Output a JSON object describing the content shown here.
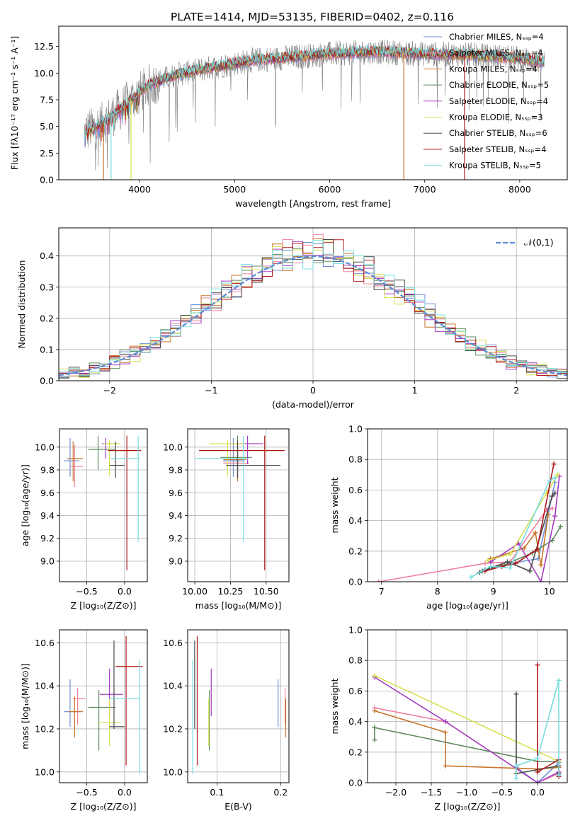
{
  "figure": {
    "title": "PLATE=1414, MJD=53135, FIBERID=0402, z=0.116"
  },
  "colors": {
    "series": [
      "#6f8fd8",
      "#f0809e",
      "#c8742a",
      "#5e8a5e",
      "#a63cc0",
      "#d8e050",
      "#4a4a4a",
      "#b01818",
      "#78dde0"
    ],
    "spectrum_data": "#7f7f7f",
    "gaussian": "#5b8ad6",
    "grid": "#b0b0b0"
  },
  "chart_data": [
    {
      "id": "spectrum",
      "type": "line",
      "title": "PLATE=1414, MJD=53135, FIBERID=0402, z=0.116",
      "xlabel": "wavelength [Angstrom, rest frame]",
      "ylabel": "Flux [fλ10⁻¹⁷ erg cm⁻² s⁻¹ A⁻¹]",
      "xlim": [
        3150,
        8500
      ],
      "ylim": [
        0,
        14.4
      ],
      "xticks": [
        4000,
        5000,
        6000,
        7000,
        8000
      ],
      "yticks": [
        0.0,
        2.5,
        5.0,
        7.5,
        10.0,
        12.5
      ],
      "grid": false,
      "legend_position": "upper right",
      "x_range_data": [
        3420,
        8260
      ],
      "continuum": [
        [
          3420,
          4.5
        ],
        [
          3600,
          5.2
        ],
        [
          3900,
          7.4
        ],
        [
          4100,
          8.9
        ],
        [
          4400,
          9.9
        ],
        [
          4800,
          10.6
        ],
        [
          5200,
          11.2
        ],
        [
          5600,
          11.5
        ],
        [
          6000,
          11.8
        ],
        [
          6500,
          12.0
        ],
        [
          7000,
          11.8
        ],
        [
          7500,
          11.7
        ],
        [
          8000,
          11.4
        ],
        [
          8260,
          11.0
        ]
      ],
      "series": [
        {
          "name": "Chabrier MILES, N_SSP=4"
        },
        {
          "name": "Salpeter MILES, N_SSP=4"
        },
        {
          "name": "Kroupa MILES, N_SSP=4"
        },
        {
          "name": "Chabrier ELODIE, N_SSP=5"
        },
        {
          "name": "Salpeter ELODIE, N_SSP=4"
        },
        {
          "name": "Kroupa ELODIE, N_SSP=3"
        },
        {
          "name": "Chabrier STELIB, N_SSP=6"
        },
        {
          "name": "Salpeter STELIB, N_SSP=4"
        },
        {
          "name": "Kroupa STELIB, N_SSP=5"
        }
      ],
      "vertical_drops": [
        {
          "x": 3620,
          "series": 2
        },
        {
          "x": 3700,
          "series": 8
        },
        {
          "x": 3910,
          "series": 5
        },
        {
          "x": 6780,
          "series": 2
        },
        {
          "x": 7420,
          "series": 7
        }
      ]
    },
    {
      "id": "residuals",
      "type": "histogram",
      "xlabel": "(data-model)/error",
      "ylabel": "Normed distribution",
      "xlim": [
        -2.5,
        2.5
      ],
      "ylim": [
        0,
        0.49
      ],
      "xticks": [
        -2,
        -1,
        0,
        1,
        2
      ],
      "yticks": [
        0.0,
        0.1,
        0.2,
        0.3,
        0.4
      ],
      "grid": true,
      "bin_width": 0.1,
      "legend": [
        {
          "name": "𝒩(0,1)",
          "style": "dashed"
        }
      ],
      "legend_position": "upper right"
    },
    {
      "id": "age_vs_Z",
      "type": "errorbar",
      "xlabel": "Z [log₁₀(Z/Z⊙)]",
      "ylabel": "age  [log₁₀(age/yr)]",
      "xlim": [
        -0.86,
        0.3
      ],
      "ylim": [
        8.82,
        10.16
      ],
      "xticks": [
        -0.5,
        0.0
      ],
      "xtick_labels": [
        "−0.5",
        "0.0"
      ],
      "yticks": [
        9.0,
        9.2,
        9.4,
        9.6,
        9.8,
        10.0
      ],
      "grid": true,
      "points": [
        {
          "x": -0.72,
          "xlo": -0.8,
          "xhi": -0.6,
          "y": 9.88,
          "ylo": 9.74,
          "yhi": 10.08,
          "series": 0
        },
        {
          "x": -0.66,
          "xlo": -0.72,
          "xhi": -0.55,
          "y": 9.83,
          "ylo": 9.65,
          "yhi": 10.02,
          "series": 1
        },
        {
          "x": -0.68,
          "xlo": -0.76,
          "xhi": -0.55,
          "y": 9.9,
          "ylo": 9.7,
          "yhi": 10.05,
          "series": 2
        },
        {
          "x": -0.35,
          "xlo": -0.48,
          "xhi": -0.12,
          "y": 9.98,
          "ylo": 9.8,
          "yhi": 10.1,
          "series": 3
        },
        {
          "x": -0.25,
          "xlo": -0.3,
          "xhi": -0.1,
          "y": 10.03,
          "ylo": 9.9,
          "yhi": 10.08,
          "series": 4
        },
        {
          "x": -0.2,
          "xlo": -0.28,
          "xhi": -0.05,
          "y": 10.03,
          "ylo": 9.75,
          "yhi": 10.06,
          "series": 5
        },
        {
          "x": -0.12,
          "xlo": -0.2,
          "xhi": 0.0,
          "y": 9.84,
          "ylo": 9.73,
          "yhi": 10.05,
          "series": 6
        },
        {
          "x": 0.03,
          "xlo": -0.22,
          "xhi": 0.22,
          "y": 9.97,
          "ylo": 8.92,
          "yhi": 10.1,
          "series": 7
        },
        {
          "x": 0.18,
          "xlo": -0.18,
          "xhi": 0.2,
          "y": 9.9,
          "ylo": 9.17,
          "yhi": 10.1,
          "series": 8
        }
      ]
    },
    {
      "id": "age_vs_mass",
      "type": "errorbar",
      "xlabel": "mass [log₁₀(M/M⊙)]",
      "ylabel": "",
      "xlim": [
        9.95,
        10.66
      ],
      "ylim": [
        8.82,
        10.16
      ],
      "xticks": [
        10.0,
        10.25,
        10.5
      ],
      "xtick_labels": [
        "10.00",
        "10.25",
        "10.50"
      ],
      "yticks": [
        9.0,
        9.2,
        9.4,
        9.6,
        9.8,
        10.0
      ],
      "grid": true,
      "points": [
        {
          "x": 10.27,
          "xlo": 10.2,
          "xhi": 10.35,
          "y": 9.88,
          "ylo": 9.74,
          "yhi": 10.08,
          "series": 0
        },
        {
          "x": 10.3,
          "xlo": 10.2,
          "xhi": 10.38,
          "y": 9.86,
          "ylo": 9.7,
          "yhi": 10.03,
          "series": 1
        },
        {
          "x": 10.3,
          "xlo": 10.2,
          "xhi": 10.36,
          "y": 9.89,
          "ylo": 9.7,
          "yhi": 10.05,
          "series": 2
        },
        {
          "x": 10.3,
          "xlo": 10.18,
          "xhi": 10.4,
          "y": 9.91,
          "ylo": 9.75,
          "yhi": 10.1,
          "series": 3
        },
        {
          "x": 10.37,
          "xlo": 10.25,
          "xhi": 10.48,
          "y": 10.03,
          "ylo": 9.85,
          "yhi": 10.1,
          "series": 4
        },
        {
          "x": 10.23,
          "xlo": 10.1,
          "xhi": 10.35,
          "y": 10.03,
          "ylo": 9.75,
          "yhi": 10.06,
          "series": 5
        },
        {
          "x": 10.3,
          "xlo": 10.22,
          "xhi": 10.6,
          "y": 9.84,
          "ylo": 9.73,
          "yhi": 10.06,
          "series": 6
        },
        {
          "x": 10.49,
          "xlo": 10.03,
          "xhi": 10.63,
          "y": 9.97,
          "ylo": 8.92,
          "yhi": 10.1,
          "series": 7
        },
        {
          "x": 10.34,
          "xlo": 10.0,
          "xhi": 10.38,
          "y": 9.9,
          "ylo": 9.17,
          "yhi": 10.1,
          "series": 8
        }
      ]
    },
    {
      "id": "weight_vs_age",
      "type": "line",
      "xlabel": "age  [log₁₀(age/yr)]",
      "ylabel": "mass weight",
      "xlim": [
        6.75,
        10.32
      ],
      "ylim": [
        0,
        1.0
      ],
      "xticks": [
        7,
        8,
        9,
        10
      ],
      "yticks": [
        0.0,
        0.2,
        0.4,
        0.6,
        0.8,
        1.0
      ],
      "grid": true,
      "series": [
        {
          "series": 0,
          "points": [
            [
              8.85,
              0.08
            ],
            [
              9.3,
              0.12
            ],
            [
              9.8,
              0.15
            ],
            [
              10.0,
              0.48
            ],
            [
              10.1,
              0.65
            ]
          ]
        },
        {
          "series": 1,
          "points": [
            [
              6.95,
              0.0
            ],
            [
              8.85,
              0.12
            ],
            [
              9.3,
              0.13
            ],
            [
              9.95,
              0.47
            ],
            [
              10.05,
              0.48
            ]
          ]
        },
        {
          "series": 2,
          "points": [
            [
              8.95,
              0.15
            ],
            [
              9.55,
              0.22
            ],
            [
              9.75,
              0.32
            ],
            [
              9.85,
              0.11
            ],
            [
              9.98,
              0.44
            ]
          ]
        },
        {
          "series": 3,
          "points": [
            [
              8.8,
              0.07
            ],
            [
              9.2,
              0.11
            ],
            [
              9.7,
              0.19
            ],
            [
              10.05,
              0.27
            ],
            [
              10.2,
              0.36
            ]
          ]
        },
        {
          "series": 4,
          "points": [
            [
              8.95,
              0.13
            ],
            [
              9.45,
              0.25
            ],
            [
              9.85,
              0.0
            ],
            [
              10.1,
              0.43
            ],
            [
              10.18,
              0.69
            ]
          ]
        },
        {
          "series": 5,
          "points": [
            [
              8.9,
              0.14
            ],
            [
              9.3,
              0.18
            ],
            [
              9.95,
              0.58
            ],
            [
              10.15,
              0.7
            ]
          ]
        },
        {
          "series": 6,
          "points": [
            [
              8.75,
              0.06
            ],
            [
              8.95,
              0.09
            ],
            [
              9.25,
              0.13
            ],
            [
              9.65,
              0.07
            ],
            [
              10.05,
              0.56
            ],
            [
              10.1,
              0.58
            ]
          ]
        },
        {
          "series": 7,
          "points": [
            [
              8.85,
              0.07
            ],
            [
              9.15,
              0.1
            ],
            [
              9.4,
              0.12
            ],
            [
              9.78,
              0.21
            ],
            [
              10.08,
              0.77
            ]
          ]
        },
        {
          "series": 8,
          "points": [
            [
              8.6,
              0.03
            ],
            [
              8.95,
              0.1
            ],
            [
              9.3,
              0.09
            ],
            [
              10.0,
              0.66
            ],
            [
              10.1,
              0.68
            ]
          ]
        }
      ]
    },
    {
      "id": "mass_vs_Z",
      "type": "errorbar",
      "xlabel": "Z [log₁₀(Z/Z⊙)]",
      "ylabel": "mass [log₁₀(M/M⊙)]",
      "xlim": [
        -0.86,
        0.3
      ],
      "ylim": [
        9.95,
        10.66
      ],
      "xticks": [
        -0.5,
        0.0
      ],
      "xtick_labels": [
        "−0.5",
        "0.0"
      ],
      "yticks": [
        10.0,
        10.2,
        10.4,
        10.6
      ],
      "grid": true,
      "points": [
        {
          "x": -0.72,
          "xlo": -0.8,
          "xhi": -0.63,
          "y": 10.28,
          "ylo": 10.21,
          "yhi": 10.43,
          "series": 0
        },
        {
          "x": -0.62,
          "xlo": -0.68,
          "xhi": -0.52,
          "y": 10.34,
          "ylo": 10.22,
          "yhi": 10.39,
          "series": 1
        },
        {
          "x": -0.66,
          "xlo": -0.74,
          "xhi": -0.55,
          "y": 10.28,
          "ylo": 10.16,
          "yhi": 10.35,
          "series": 2
        },
        {
          "x": -0.34,
          "xlo": -0.48,
          "xhi": -0.12,
          "y": 10.3,
          "ylo": 10.1,
          "yhi": 10.38,
          "series": 3
        },
        {
          "x": -0.2,
          "xlo": -0.33,
          "xhi": -0.02,
          "y": 10.36,
          "ylo": 10.26,
          "yhi": 10.48,
          "series": 4
        },
        {
          "x": -0.2,
          "xlo": -0.35,
          "xhi": -0.05,
          "y": 10.23,
          "ylo": 10.12,
          "yhi": 10.34,
          "series": 5
        },
        {
          "x": -0.14,
          "xlo": -0.2,
          "xhi": 0.0,
          "y": 10.21,
          "ylo": 10.2,
          "yhi": 10.61,
          "series": 6
        },
        {
          "x": 0.02,
          "xlo": -0.12,
          "xhi": 0.24,
          "y": 10.49,
          "ylo": 10.03,
          "yhi": 10.63,
          "series": 7
        },
        {
          "x": 0.2,
          "xlo": -0.2,
          "xhi": 0.2,
          "y": 10.34,
          "ylo": 9.99,
          "yhi": 10.52,
          "series": 8
        }
      ]
    },
    {
      "id": "mass_vs_ebv",
      "type": "errorbar",
      "xlabel": "E(B-V)",
      "ylabel": "",
      "xlim": [
        0.054,
        0.213
      ],
      "ylim": [
        9.95,
        10.66
      ],
      "xticks": [
        0.1,
        0.2
      ],
      "xtick_labels": [
        "0.1",
        "0.2"
      ],
      "yticks": [
        10.0,
        10.2,
        10.4,
        10.6
      ],
      "grid": true,
      "points": [
        {
          "x": 0.196,
          "ylo": 10.21,
          "yhi": 10.43,
          "series": 0
        },
        {
          "x": 0.207,
          "ylo": 10.22,
          "yhi": 10.39,
          "series": 1
        },
        {
          "x": 0.208,
          "ylo": 10.16,
          "yhi": 10.34,
          "series": 2
        },
        {
          "x": 0.088,
          "ylo": 10.1,
          "yhi": 10.38,
          "series": 3
        },
        {
          "x": 0.091,
          "ylo": 10.26,
          "yhi": 10.48,
          "series": 4
        },
        {
          "x": 0.087,
          "ylo": 10.12,
          "yhi": 10.34,
          "series": 5
        },
        {
          "x": 0.065,
          "ylo": 10.2,
          "yhi": 10.61,
          "series": 6
        },
        {
          "x": 0.069,
          "ylo": 10.03,
          "yhi": 10.63,
          "series": 7
        },
        {
          "x": 0.062,
          "ylo": 9.99,
          "yhi": 10.52,
          "series": 8
        }
      ]
    },
    {
      "id": "weight_vs_Z",
      "type": "line",
      "xlabel": "Z [log₁₀(Z/Z⊙)]",
      "ylabel": "mass weight",
      "xlim": [
        -2.4,
        0.42
      ],
      "ylim": [
        0,
        1.0
      ],
      "xticks": [
        -2.0,
        -1.5,
        -1.0,
        -0.5,
        0.0
      ],
      "xtick_labels": [
        "−2.0",
        "−1.5",
        "−1.0",
        "−0.5",
        "0.0"
      ],
      "yticks": [
        0.0,
        0.2,
        0.4,
        0.6,
        0.8,
        1.0
      ],
      "grid": true,
      "series": [
        {
          "series": 0,
          "points": [
            [
              -0.3,
              0.1
            ],
            [
              0.0,
              0.0
            ],
            [
              0.3,
              0.13
            ],
            [
              0.3,
              0.05
            ]
          ]
        },
        {
          "series": 1,
          "points": [
            [
              -2.3,
              0.49
            ],
            [
              -1.3,
              0.4
            ],
            [
              0.0,
              0.0
            ],
            [
              0.3,
              0.06
            ]
          ]
        },
        {
          "series": 2,
          "points": [
            [
              -2.3,
              0.47
            ],
            [
              -1.3,
              0.33
            ],
            [
              -1.3,
              0.11
            ],
            [
              0.0,
              0.09
            ],
            [
              0.3,
              0.1
            ]
          ]
        },
        {
          "series": 3,
          "points": [
            [
              -2.3,
              0.36
            ],
            [
              -2.3,
              0.28
            ],
            [
              -2.3,
              0.36
            ],
            [
              0.0,
              0.14
            ],
            [
              0.3,
              0.14
            ]
          ]
        },
        {
          "series": 4,
          "points": [
            [
              -2.3,
              0.69
            ],
            [
              -1.3,
              0.4
            ],
            [
              0.0,
              0.0
            ],
            [
              0.3,
              0.07
            ]
          ]
        },
        {
          "series": 5,
          "points": [
            [
              -2.3,
              0.7
            ],
            [
              0.3,
              0.14
            ]
          ]
        },
        {
          "series": 6,
          "points": [
            [
              -0.3,
              0.58
            ],
            [
              -0.3,
              0.06
            ],
            [
              0.3,
              0.11
            ],
            [
              0.3,
              0.06
            ]
          ]
        },
        {
          "series": 7,
          "points": [
            [
              0.0,
              0.77
            ],
            [
              0.0,
              0.07
            ],
            [
              0.3,
              0.15
            ],
            [
              0.3,
              0.04
            ]
          ]
        },
        {
          "series": 8,
          "points": [
            [
              -0.3,
              0.03
            ],
            [
              -0.3,
              0.11
            ],
            [
              0.0,
              0.16
            ],
            [
              0.3,
              0.67
            ],
            [
              0.3,
              0.05
            ]
          ]
        }
      ]
    }
  ]
}
